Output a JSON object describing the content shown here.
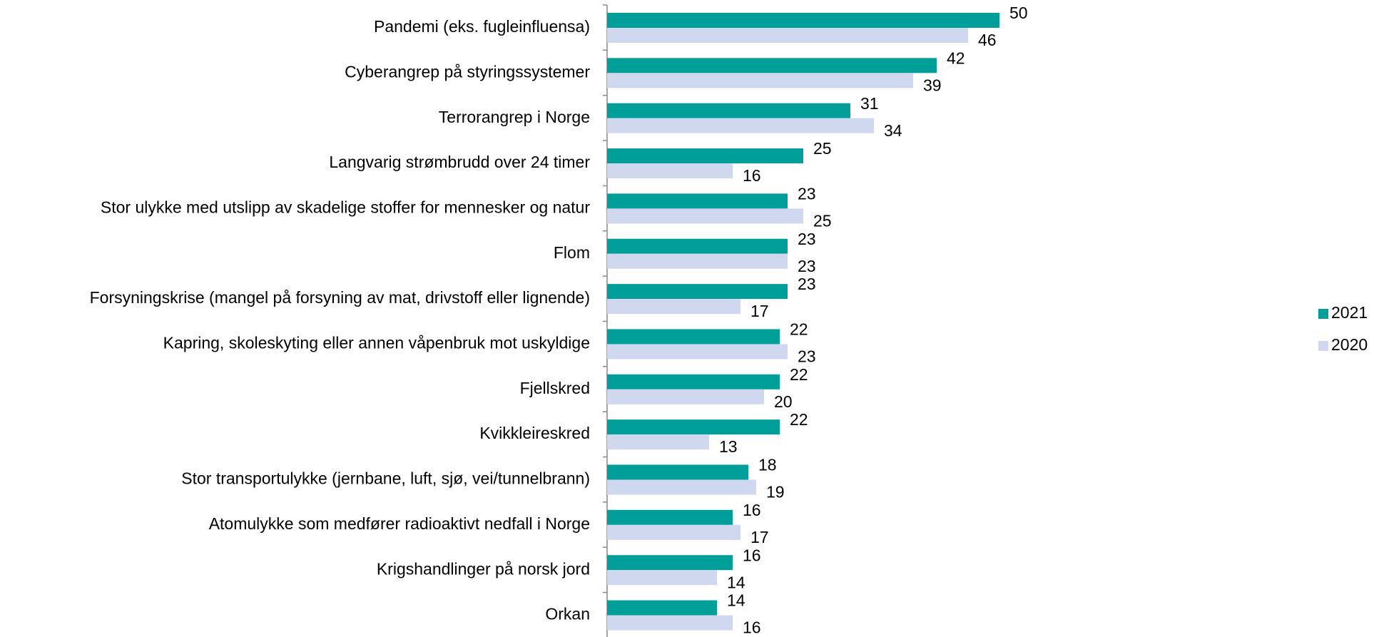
{
  "chart_data": {
    "type": "barh",
    "categories": [
      "Pandemi (eks. fugleinfluensa)",
      "Cyberangrep på styringssystemer",
      "Terrorangrep i Norge",
      "Langvarig strømbrudd over 24 timer",
      "Stor ulykke med utslipp av skadelige stoffer for mennesker og natur",
      "Flom",
      "Forsyningskrise (mangel på forsyning av mat, drivstoff eller lignende)",
      "Kapring, skoleskyting eller annen våpenbruk mot uskyldige",
      "Fjellskred",
      "Kvikkleireskred",
      "Stor transportulykke (jernbane, luft, sjø, vei/tunnelbrann)",
      "Atomulykke som medfører radioaktivt nedfall i Norge",
      "Krigshandlinger på norsk jord",
      "Orkan"
    ],
    "series": [
      {
        "name": "2021",
        "color": "#009e99",
        "values": [
          50,
          42,
          31,
          25,
          23,
          23,
          23,
          22,
          22,
          22,
          18,
          16,
          16,
          14
        ]
      },
      {
        "name": "2020",
        "color": "#d0d8f0",
        "values": [
          46,
          39,
          34,
          16,
          25,
          23,
          17,
          23,
          20,
          13,
          19,
          17,
          14,
          16
        ]
      }
    ],
    "legend": "right"
  }
}
